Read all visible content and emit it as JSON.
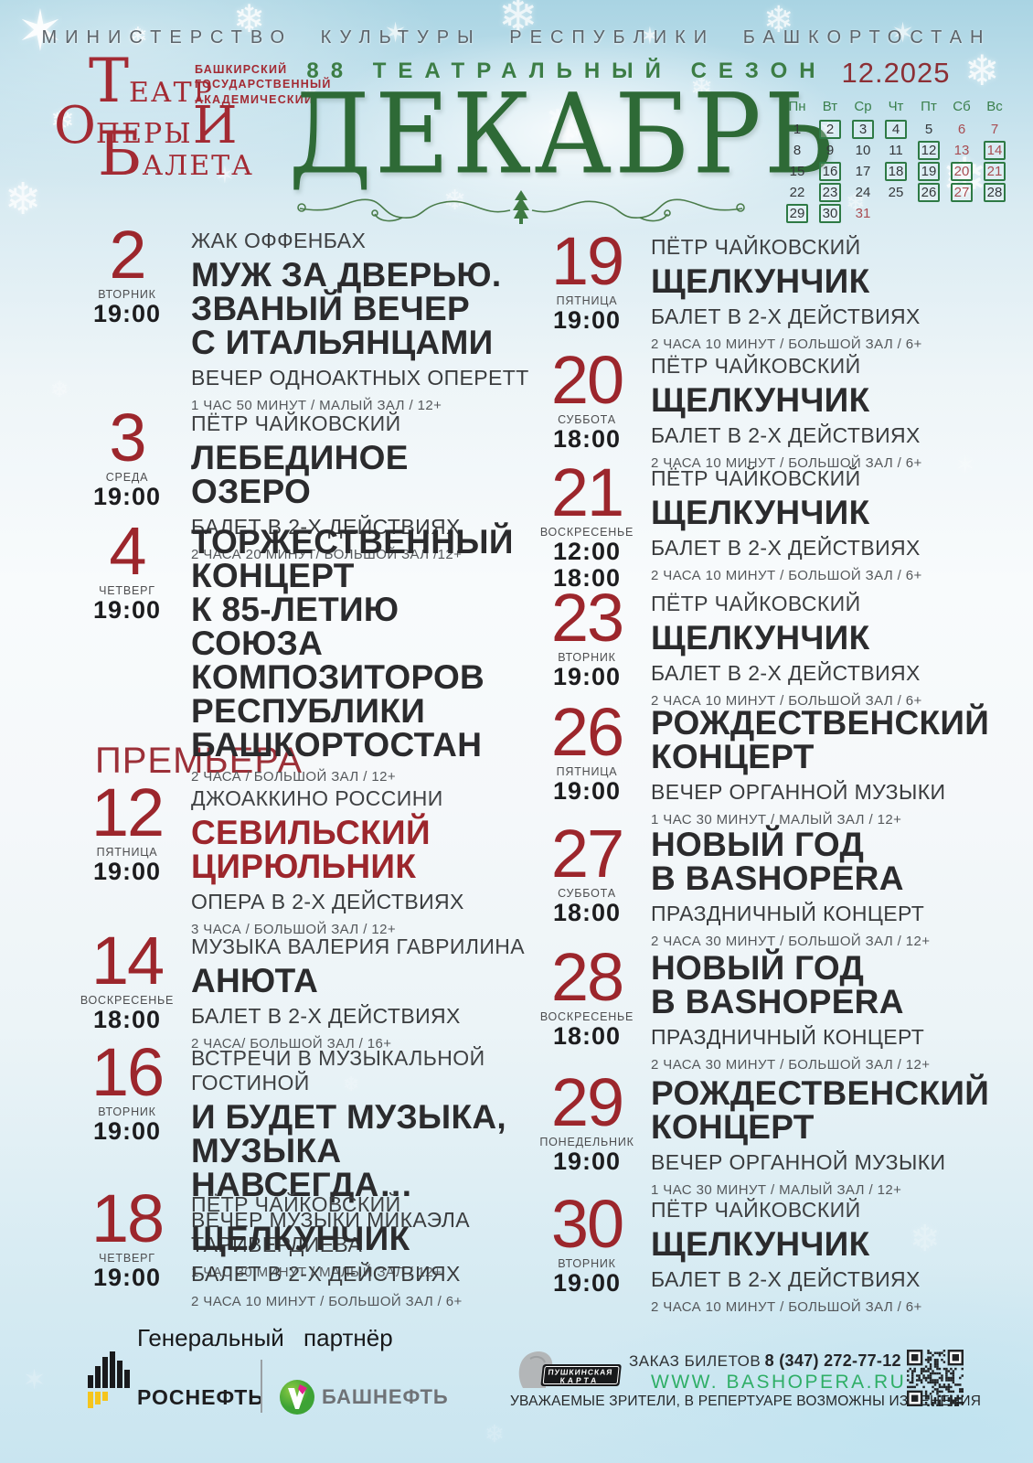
{
  "colors": {
    "accent_red": "#9c262c",
    "premiere_red": "#9c3038",
    "month_green": "#2e6a36",
    "season_green": "#3c7d45",
    "calendar_box_green": "#2e7a45",
    "calendar_red": "#a84d52",
    "website_green": "#2fae66",
    "rosneft_yellow": "#f5c51d",
    "bashneft_green": "#4fae3a",
    "bashneft_magenta": "#e0218a"
  },
  "header": {
    "ministry": "МИНИСТЕРСТВО КУЛЬТУРЫ РЕСПУБЛИКИ БАШКОРТОСТАН",
    "season": "88 ТЕАТРАЛЬНЫЙ СЕЗОН",
    "month_title": "ДЕКАБРЬ",
    "logo": {
      "small_line1": "БАШКИРСКИЙ",
      "small_line2": "ГОСУДАРСТВЕННЫЙ",
      "small_line3": "АКАДЕМИЧЕСКИЙ",
      "word1_initial": "Т",
      "word1_rest": "ЕАТР",
      "word2_initial": "О",
      "word2_rest": "ПЕРЫ ",
      "word2_and": "И",
      "word3_initial": "Б",
      "word3_rest": "АЛЕТА"
    }
  },
  "calendar": {
    "month_label": "12.2025",
    "weekdays": [
      "Пн",
      "Вт",
      "Ср",
      "Чт",
      "Пт",
      "Сб",
      "Вс"
    ],
    "weeks": [
      [
        {
          "d": "1",
          "s": "p"
        },
        {
          "d": "2",
          "s": "b"
        },
        {
          "d": "3",
          "s": "b"
        },
        {
          "d": "4",
          "s": "b"
        },
        {
          "d": "5",
          "s": "p"
        },
        {
          "d": "6",
          "s": "r"
        },
        {
          "d": "7",
          "s": "r"
        }
      ],
      [
        {
          "d": "8",
          "s": "p"
        },
        {
          "d": "9",
          "s": "p"
        },
        {
          "d": "10",
          "s": "p"
        },
        {
          "d": "11",
          "s": "p"
        },
        {
          "d": "12",
          "s": "b"
        },
        {
          "d": "13",
          "s": "r"
        },
        {
          "d": "14",
          "s": "br"
        }
      ],
      [
        {
          "d": "15",
          "s": "p"
        },
        {
          "d": "16",
          "s": "b"
        },
        {
          "d": "17",
          "s": "p"
        },
        {
          "d": "18",
          "s": "b"
        },
        {
          "d": "19",
          "s": "b"
        },
        {
          "d": "20",
          "s": "br"
        },
        {
          "d": "21",
          "s": "br"
        }
      ],
      [
        {
          "d": "22",
          "s": "p"
        },
        {
          "d": "23",
          "s": "b"
        },
        {
          "d": "24",
          "s": "p"
        },
        {
          "d": "25",
          "s": "p"
        },
        {
          "d": "26",
          "s": "b"
        },
        {
          "d": "27",
          "s": "br"
        },
        {
          "d": "28",
          "s": "b"
        }
      ],
      [
        {
          "d": "29",
          "s": "b"
        },
        {
          "d": "30",
          "s": "b"
        },
        {
          "d": "31",
          "s": "r"
        },
        {
          "d": "",
          "s": "e"
        },
        {
          "d": "",
          "s": "e"
        },
        {
          "d": "",
          "s": "e"
        },
        {
          "d": "",
          "s": "e"
        }
      ]
    ]
  },
  "premiere_label": "ПРЕМЬЕРА",
  "events_left": [
    {
      "date": "2",
      "day": "ВТОРНИК",
      "times": [
        "19:00"
      ],
      "kicker": "ЖАК ОФФЕНБАХ",
      "title": [
        "МУЖ ЗА ДВЕРЬЮ.",
        "ЗВАНЫЙ ВЕЧЕР",
        "С ИТАЛЬЯНЦАМИ"
      ],
      "subtitle": "ВЕЧЕР ОДНОАКТНЫХ ОПЕРЕТТ",
      "details": "1 ЧАС 50 МИНУТ / МАЛЫЙ ЗАЛ / 12+"
    },
    {
      "date": "3",
      "day": "СРЕДА",
      "times": [
        "19:00"
      ],
      "kicker": "ПЁТР ЧАЙКОВСКИЙ",
      "title": [
        "ЛЕБЕДИНОЕ ОЗЕРО"
      ],
      "subtitle": "БАЛЕТ В 2-Х ДЕЙСТВИЯХ",
      "details": "2 ЧАСА 20 МИНУТ/ БОЛЬШОЙ ЗАЛ /12+"
    },
    {
      "date": "4",
      "day": "ЧЕТВЕРГ",
      "times": [
        "19:00"
      ],
      "kicker": "",
      "title": [
        "ТОРЖЕСТВЕННЫЙ",
        "КОНЦЕРТ",
        "К 85-ЛЕТИЮ СОЮЗА",
        "КОМПОЗИТОРОВ",
        "РЕСПУБЛИКИ",
        "БАШКОРТОСТАН"
      ],
      "subtitle": "",
      "details": "2 ЧАСА / БОЛЬШОЙ ЗАЛ / 12+"
    },
    {
      "date": "12",
      "day": "ПЯТНИЦА",
      "times": [
        "19:00"
      ],
      "kicker": "ДЖОАККИНО РОССИНИ",
      "title": [
        "СЕВИЛЬСКИЙ",
        "ЦИРЮЛЬНИК"
      ],
      "accent": true,
      "subtitle": "ОПЕРА В 2-Х ДЕЙСТВИЯХ",
      "details": "3 ЧАСА / БОЛЬШОЙ ЗАЛ / 12+"
    },
    {
      "date": "14",
      "day": "ВОСКРЕСЕНЬЕ",
      "times": [
        "18:00"
      ],
      "kicker": "МУЗЫКА ВАЛЕРИЯ ГАВРИЛИНА",
      "title": [
        "АНЮТА"
      ],
      "subtitle": "БАЛЕТ В 2-Х ДЕЙСТВИЯХ",
      "details": "2 ЧАСА/ БОЛЬШОЙ ЗАЛ / 16+"
    },
    {
      "date": "16",
      "day": "ВТОРНИК",
      "times": [
        "19:00"
      ],
      "kicker": "ВСТРЕЧИ В МУЗЫКАЛЬНОЙ ГОСТИНОЙ",
      "title": [
        "И БУДЕТ МУЗЫКА,",
        "МУЗЫКА НАВСЕГДА…"
      ],
      "subtitle": "ВЕЧЕР МУЗЫКИ МИКАЭЛА ТАРИВЕРДИЕВА",
      "details": "1 ЧАС 30 МИНУТ / МАЛЫЙ ЗАЛ / 12+"
    },
    {
      "date": "18",
      "day": "ЧЕТВЕРГ",
      "times": [
        "19:00"
      ],
      "kicker": "ПЁТР ЧАЙКОВСКИЙ",
      "title": [
        "ЩЕЛКУНЧИК"
      ],
      "subtitle": "БАЛЕТ В 2-Х ДЕЙСТВИЯХ",
      "details": "2 ЧАСА 10 МИНУТ / БОЛЬШОЙ ЗАЛ / 6+"
    }
  ],
  "events_right": [
    {
      "date": "19",
      "day": "ПЯТНИЦА",
      "times": [
        "19:00"
      ],
      "kicker": "ПЁТР ЧАЙКОВСКИЙ",
      "title": [
        "ЩЕЛКУНЧИК"
      ],
      "subtitle": "БАЛЕТ В 2-Х ДЕЙСТВИЯХ",
      "details": "2 ЧАСА 10 МИНУТ / БОЛЬШОЙ ЗАЛ / 6+"
    },
    {
      "date": "20",
      "day": "СУББОТА",
      "times": [
        "18:00"
      ],
      "kicker": "ПЁТР ЧАЙКОВСКИЙ",
      "title": [
        "ЩЕЛКУНЧИК"
      ],
      "subtitle": "БАЛЕТ В 2-Х ДЕЙСТВИЯХ",
      "details": "2 ЧАСА 10 МИНУТ / БОЛЬШОЙ ЗАЛ / 6+"
    },
    {
      "date": "21",
      "day": "ВОСКРЕСЕНЬЕ",
      "times": [
        "12:00",
        "18:00"
      ],
      "kicker": "ПЁТР ЧАЙКОВСКИЙ",
      "title": [
        "ЩЕЛКУНЧИК"
      ],
      "subtitle": "БАЛЕТ В 2-Х ДЕЙСТВИЯХ",
      "details": "2 ЧАСА 10 МИНУТ / БОЛЬШОЙ ЗАЛ / 6+"
    },
    {
      "date": "23",
      "day": "ВТОРНИК",
      "times": [
        "19:00"
      ],
      "kicker": "ПЁТР ЧАЙКОВСКИЙ",
      "title": [
        "ЩЕЛКУНЧИК"
      ],
      "subtitle": "БАЛЕТ В 2-Х ДЕЙСТВИЯХ",
      "details": "2 ЧАСА 10 МИНУТ / БОЛЬШОЙ ЗАЛ / 6+"
    },
    {
      "date": "26",
      "day": "ПЯТНИЦА",
      "times": [
        "19:00"
      ],
      "kicker": "",
      "title": [
        "РОЖДЕСТВЕНСКИЙ",
        "КОНЦЕРТ"
      ],
      "subtitle": "ВЕЧЕР ОРГАННОЙ МУЗЫКИ",
      "details": "1 ЧАС 30 МИНУТ / МАЛЫЙ ЗАЛ / 12+"
    },
    {
      "date": "27",
      "day": "СУББОТА",
      "times": [
        "18:00"
      ],
      "kicker": "",
      "title": [
        "НОВЫЙ ГОД",
        "В BASHOPERA"
      ],
      "subtitle": "ПРАЗДНИЧНЫЙ КОНЦЕРТ",
      "details": "2 ЧАСА 30 МИНУТ / БОЛЬШОЙ ЗАЛ / 12+"
    },
    {
      "date": "28",
      "day": "ВОСКРЕСЕНЬЕ",
      "times": [
        "18:00"
      ],
      "kicker": "",
      "title": [
        "НОВЫЙ ГОД",
        "В BASHOPERA"
      ],
      "subtitle": "ПРАЗДНИЧНЫЙ КОНЦЕРТ",
      "details": "2 ЧАСА 30 МИНУТ / БОЛЬШОЙ ЗАЛ / 12+"
    },
    {
      "date": "29",
      "day": "ПОНЕДЕЛЬНИК",
      "times": [
        "19:00"
      ],
      "kicker": "",
      "title": [
        "РОЖДЕСТВЕНСКИЙ",
        "КОНЦЕРТ"
      ],
      "subtitle": "ВЕЧЕР ОРГАННОЙ МУЗЫКИ",
      "details": "1 ЧАС 30 МИНУТ / МАЛЫЙ ЗАЛ / 12+"
    },
    {
      "date": "30",
      "day": "ВТОРНИК",
      "times": [
        "19:00"
      ],
      "kicker": "ПЁТР ЧАЙКОВСКИЙ",
      "title": [
        "ЩЕЛКУНЧИК"
      ],
      "subtitle": "БАЛЕТ В 2-Х ДЕЙСТВИЯХ",
      "details": "2 ЧАСА 10 МИНУТ / БОЛЬШОЙ ЗАЛ / 6+"
    }
  ],
  "footer": {
    "partner_label": "Генеральный  партнёр",
    "rosneft": "РОСНЕФТЬ",
    "bashneft": "БАШНЕФТЬ",
    "pushkin_card_line1": "ПУШКИНСКАЯ",
    "pushkin_card_line2": "КАРТА",
    "tickets_label": "ЗАКАЗ БИЛЕТОВ",
    "phone": "8 (347) 272-77-12",
    "website": "WWW. BASHOPERA.RU",
    "disclaimer": "УВАЖАЕМЫЕ ЗРИТЕЛИ, В РЕПЕРТУАРЕ ВОЗМОЖНЫ ИЗМЕНЕНИЯ"
  }
}
